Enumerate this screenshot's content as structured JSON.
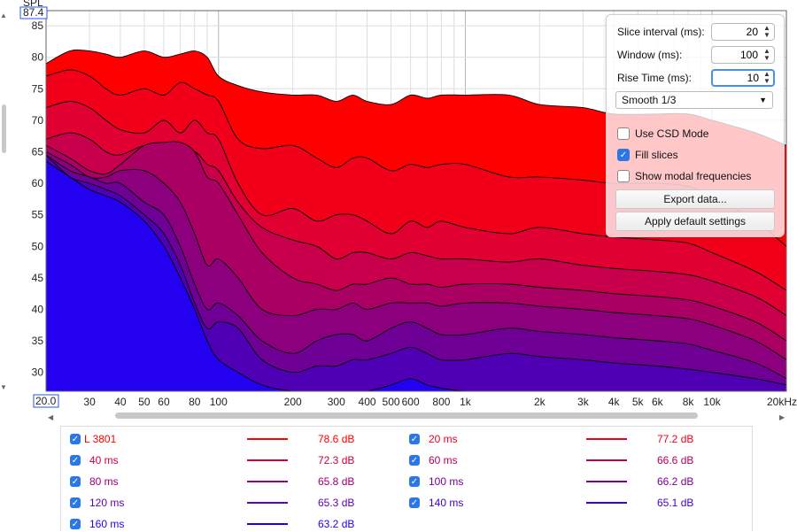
{
  "axes": {
    "y_axis_label": "SPL",
    "y_top_value": "87.4",
    "y_ticks": [
      "85",
      "80",
      "75",
      "70",
      "65",
      "60",
      "55",
      "50",
      "45",
      "40",
      "35",
      "30"
    ],
    "x_start": "20.0",
    "x_ticks": [
      "30",
      "40",
      "50",
      "60",
      "80",
      "100",
      "200",
      "300",
      "400",
      "500",
      "600",
      "800",
      "1k",
      "2k",
      "3k",
      "4k",
      "5k",
      "6k",
      "8k",
      "10k",
      "20kHz"
    ]
  },
  "chart_data": {
    "type": "area",
    "xlabel": "",
    "ylabel": "SPL",
    "x_scale": "log",
    "xlim_hz": [
      20,
      20000
    ],
    "ylim_db": [
      27,
      87.4
    ],
    "grid": true,
    "x_hz": [
      20,
      25,
      30,
      35,
      40,
      50,
      60,
      70,
      80,
      90,
      100,
      120,
      150,
      200,
      250,
      300,
      350,
      400,
      500,
      600,
      700,
      800,
      1000,
      1500,
      2000,
      3000,
      4000,
      6000,
      8000,
      10000,
      15000,
      20000
    ],
    "series": [
      {
        "name": "L 3801",
        "color": "#ff0000",
        "values": [
          79,
          81,
          81,
          80.5,
          80,
          81,
          80,
          80.5,
          81,
          80,
          77,
          75.5,
          74.5,
          74,
          74,
          73,
          74,
          73,
          72.5,
          74,
          73.5,
          74,
          74,
          74,
          72.5,
          72,
          71,
          71,
          71,
          70,
          68,
          66
        ]
      },
      {
        "name": "20 ms",
        "color": "#f2001a",
        "values": [
          77,
          78,
          77,
          75,
          74,
          75,
          74,
          76,
          75,
          74,
          73,
          67,
          65.5,
          66,
          64,
          62.5,
          64,
          64,
          62,
          63,
          62.5,
          63,
          63,
          61,
          61,
          60.5,
          60,
          60,
          59.5,
          58,
          54,
          50
        ]
      },
      {
        "name": "40 ms",
        "color": "#e00032",
        "values": [
          72,
          73,
          72,
          70,
          68.5,
          68,
          70,
          68,
          70,
          68,
          67,
          60,
          55,
          56,
          54,
          55,
          55,
          54,
          52,
          54,
          53,
          54,
          53,
          52,
          53,
          52,
          51.5,
          51,
          50.5,
          49,
          46,
          43
        ]
      },
      {
        "name": "60 ms",
        "color": "#c8004b",
        "values": [
          67,
          68,
          67,
          65,
          64.5,
          66,
          66,
          64,
          65,
          63,
          62,
          57,
          53,
          51,
          50,
          48,
          49,
          49,
          48,
          49,
          48.5,
          48,
          48,
          47.5,
          48,
          47,
          46.5,
          46,
          45.5,
          44.5,
          42,
          39
        ]
      },
      {
        "name": "80 ms",
        "color": "#aa0064",
        "values": [
          66,
          64,
          62,
          61.5,
          63,
          66,
          66.5,
          66.5,
          65,
          61,
          60,
          55,
          49,
          45,
          44,
          43,
          44,
          44,
          45,
          44,
          44,
          43.5,
          44,
          44,
          43.5,
          43,
          42.5,
          42,
          41.5,
          40.5,
          38,
          35
        ]
      },
      {
        "name": "100 ms",
        "color": "#8c007d",
        "values": [
          65,
          63,
          61,
          61,
          62,
          62,
          60,
          57,
          52,
          47,
          48,
          45,
          40,
          39,
          40,
          40,
          41,
          40,
          41,
          41,
          41,
          40.5,
          41,
          41,
          40.5,
          40,
          39.5,
          39,
          38.5,
          37.5,
          35,
          32
        ]
      },
      {
        "name": "120 ms",
        "color": "#6e0096",
        "values": [
          64.5,
          62,
          61,
          60,
          60,
          57,
          55,
          50,
          44,
          40,
          41,
          39,
          35,
          33,
          35,
          36,
          36,
          35,
          37,
          38,
          37,
          36,
          36,
          37,
          36.5,
          36,
          35.5,
          35,
          34.5,
          33.5,
          31.5,
          29
        ]
      },
      {
        "name": "140 ms",
        "color": "#5000b4",
        "values": [
          64.5,
          61,
          60,
          59,
          58,
          55,
          52,
          47,
          41,
          37,
          38,
          37,
          32,
          30,
          31,
          31,
          32,
          32,
          33,
          34,
          33,
          32,
          32,
          33,
          32.5,
          32,
          31.5,
          31,
          30.5,
          30,
          29,
          28
        ]
      },
      {
        "name": "160 ms",
        "color": "#2400f0",
        "values": [
          63.5,
          61,
          59,
          58,
          57,
          54,
          50,
          45,
          40,
          35,
          32,
          30,
          28,
          27,
          27,
          27,
          27,
          27,
          28,
          29,
          28,
          27.5,
          27,
          27,
          27,
          27,
          27,
          27,
          27,
          27,
          27,
          27
        ]
      }
    ]
  },
  "controls": {
    "slice_interval_label": "Slice interval (ms):",
    "slice_interval_value": "20",
    "window_label": "Window (ms):",
    "window_value": "100",
    "rise_time_label": "Rise Time (ms):",
    "rise_time_value": "10",
    "smoothing_value": "Smooth 1/3",
    "csd_mode_label": "Use CSD Mode",
    "csd_mode_checked": false,
    "fill_slices_label": "Fill slices",
    "fill_slices_checked": true,
    "modal_label": "Show modal frequencies",
    "modal_checked": false,
    "export_label": "Export data...",
    "apply_default_label": "Apply default settings"
  },
  "legend": [
    {
      "name": "L 3801",
      "value": "78.6 dB",
      "color": "#ff0000"
    },
    {
      "name": "20 ms",
      "value": "77.2 dB",
      "color": "#f2001a"
    },
    {
      "name": "40 ms",
      "value": "72.3 dB",
      "color": "#d0003a"
    },
    {
      "name": "60 ms",
      "value": "66.6 dB",
      "color": "#b8005a"
    },
    {
      "name": "80 ms",
      "value": "65.8 dB",
      "color": "#9a0078"
    },
    {
      "name": "100 ms",
      "value": "66.2 dB",
      "color": "#7c0096"
    },
    {
      "name": "120 ms",
      "value": "65.3 dB",
      "color": "#5e00b4"
    },
    {
      "name": "140 ms",
      "value": "65.1 dB",
      "color": "#4000d0"
    },
    {
      "name": "160 ms",
      "value": "63.2 dB",
      "color": "#2000ee"
    }
  ],
  "icons": {
    "checkbox": "check-icon",
    "dropdown": "chevron-down-icon",
    "spin": "spin-arrows-icon"
  }
}
